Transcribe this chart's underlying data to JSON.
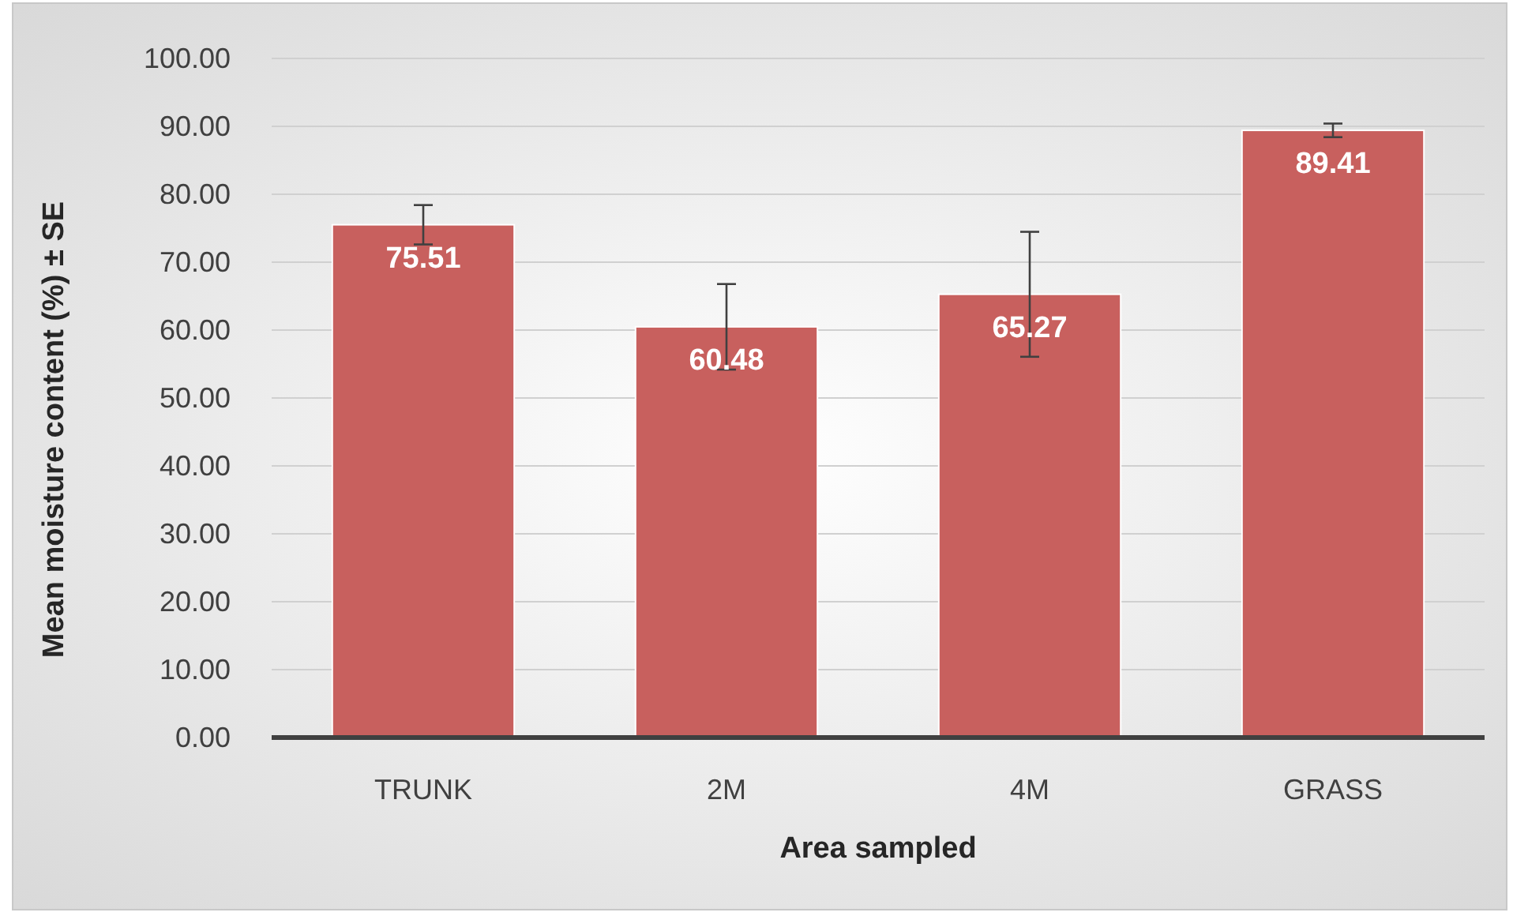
{
  "chart_data": {
    "type": "bar",
    "xlabel": "Area sampled",
    "ylabel": "Mean moisture content (%) ± SE",
    "categories": [
      "TRUNK",
      "2M",
      "4M",
      "GRASS"
    ],
    "values": [
      75.51,
      60.48,
      65.27,
      89.41
    ],
    "errors": [
      2.9,
      6.3,
      9.2,
      1.0
    ],
    "color": "#c8605e",
    "data_labels": true,
    "ylim": [
      0,
      100
    ],
    "yticks": [
      {
        "value": 0,
        "label": "0.00"
      },
      {
        "value": 10,
        "label": "10.00"
      },
      {
        "value": 20,
        "label": "20.00"
      },
      {
        "value": 30,
        "label": "30.00"
      },
      {
        "value": 40,
        "label": "40.00"
      },
      {
        "value": 50,
        "label": "50.00"
      },
      {
        "value": 60,
        "label": "60.00"
      },
      {
        "value": 70,
        "label": "70.00"
      },
      {
        "value": 80,
        "label": "80.00"
      },
      {
        "value": 90,
        "label": "90.00"
      },
      {
        "value": 100,
        "label": "100.00"
      }
    ],
    "grid": "y"
  }
}
